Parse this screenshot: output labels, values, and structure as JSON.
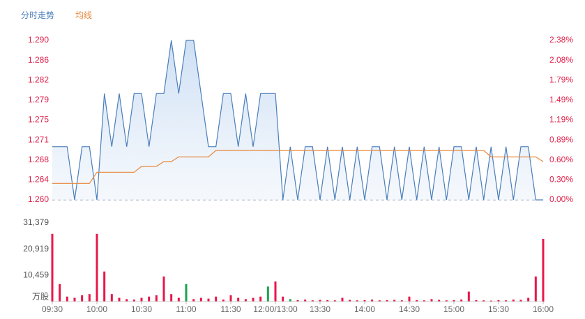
{
  "chart_data": {
    "type": "line",
    "x": [
      0,
      5,
      10,
      15,
      20,
      25,
      30,
      35,
      40,
      45,
      50,
      55,
      60,
      65,
      70,
      75,
      80,
      85,
      90,
      95,
      100,
      105,
      110,
      115,
      120,
      125,
      130,
      135,
      140,
      145,
      150,
      155,
      160,
      165,
      170,
      175,
      180,
      185,
      190,
      195,
      200,
      205,
      210,
      215,
      220,
      225,
      230,
      235,
      240,
      245,
      250,
      255,
      260,
      265,
      270,
      275,
      280,
      285,
      290,
      295,
      300,
      305,
      310,
      315,
      320,
      325,
      330
    ],
    "xlim": [
      0,
      330
    ],
    "xticks": [
      {
        "value": 0,
        "label": "09:30"
      },
      {
        "value": 30,
        "label": "10:00"
      },
      {
        "value": 60,
        "label": "10:30"
      },
      {
        "value": 90,
        "label": "11:00"
      },
      {
        "value": 120,
        "label": "11:30"
      },
      {
        "value": 150,
        "label": "12:00/13:00"
      },
      {
        "value": 180,
        "label": "13:30"
      },
      {
        "value": 210,
        "label": "14:00"
      },
      {
        "value": 240,
        "label": "14:30"
      },
      {
        "value": 270,
        "label": "15:00"
      },
      {
        "value": 300,
        "label": "15:30"
      },
      {
        "value": 330,
        "label": "16:00"
      }
    ],
    "ylim": [
      1.26,
      1.29
    ],
    "yticks": [
      {
        "value": 1.26,
        "label": "1.260"
      },
      {
        "value": 1.26375,
        "label": "1.264"
      },
      {
        "value": 1.2675,
        "label": "1.268"
      },
      {
        "value": 1.27125,
        "label": "1.271"
      },
      {
        "value": 1.275,
        "label": "1.275"
      },
      {
        "value": 1.27875,
        "label": "1.279"
      },
      {
        "value": 1.2825,
        "label": "1.282"
      },
      {
        "value": 1.28625,
        "label": "1.286"
      },
      {
        "value": 1.29,
        "label": "1.290"
      }
    ],
    "y2lim": [
      0,
      2.381
    ],
    "y2ticks": [
      {
        "value": 0,
        "label": "0.00%"
      },
      {
        "value": 0.2976,
        "label": "0.30%"
      },
      {
        "value": 0.5952,
        "label": "0.60%"
      },
      {
        "value": 0.8929,
        "label": "0.89%"
      },
      {
        "value": 1.1905,
        "label": "1.19%"
      },
      {
        "value": 1.4881,
        "label": "1.49%"
      },
      {
        "value": 1.7857,
        "label": "1.79%"
      },
      {
        "value": 2.0833,
        "label": "2.08%"
      },
      {
        "value": 2.381,
        "label": "2.38%"
      }
    ],
    "area": true,
    "series": [
      {
        "name": "分时走势",
        "color": "#4a7ebb",
        "values": [
          1.27,
          1.27,
          1.27,
          1.26,
          1.27,
          1.27,
          1.26,
          1.28,
          1.27,
          1.28,
          1.27,
          1.28,
          1.28,
          1.27,
          1.28,
          1.28,
          1.29,
          1.28,
          1.29,
          1.29,
          1.28,
          1.27,
          1.27,
          1.28,
          1.28,
          1.27,
          1.28,
          1.27,
          1.28,
          1.28,
          1.28,
          1.26,
          1.27,
          1.26,
          1.27,
          1.27,
          1.26,
          1.27,
          1.26,
          1.27,
          1.26,
          1.27,
          1.26,
          1.27,
          1.27,
          1.26,
          1.27,
          1.26,
          1.27,
          1.26,
          1.27,
          1.26,
          1.27,
          1.26,
          1.27,
          1.27,
          1.26,
          1.27,
          1.26,
          1.27,
          1.26,
          1.27,
          1.26,
          1.27,
          1.27,
          1.26,
          1.26
        ]
      },
      {
        "name": "均线",
        "color": "#e8873a",
        "values": [
          1.2631,
          1.2631,
          1.2631,
          1.2631,
          1.2631,
          1.2631,
          1.2652,
          1.2652,
          1.2652,
          1.2652,
          1.2652,
          1.2652,
          1.2663,
          1.2663,
          1.2663,
          1.2672,
          1.2672,
          1.2681,
          1.2681,
          1.2681,
          1.2681,
          1.2681,
          1.2693,
          1.2693,
          1.2693,
          1.2693,
          1.2693,
          1.2693,
          1.2693,
          1.2693,
          1.2693,
          1.2693,
          1.2693,
          1.2693,
          1.2693,
          1.2693,
          1.2693,
          1.2693,
          1.2693,
          1.2693,
          1.2693,
          1.2693,
          1.2693,
          1.2693,
          1.2693,
          1.2693,
          1.2693,
          1.2693,
          1.2693,
          1.2693,
          1.2693,
          1.2693,
          1.2693,
          1.2693,
          1.2693,
          1.2693,
          1.2693,
          1.2693,
          1.2693,
          1.2681,
          1.2681,
          1.2681,
          1.2681,
          1.2681,
          1.2681,
          1.2681,
          1.2672
        ]
      }
    ],
    "volume": {
      "values": [
        27000,
        7000,
        2000,
        1500,
        2500,
        3000,
        27000,
        12000,
        3000,
        1500,
        1000,
        800,
        1500,
        2000,
        2500,
        10000,
        3000,
        1500,
        7000,
        1000,
        1500,
        1200,
        2000,
        800,
        2500,
        1500,
        1000,
        1500,
        2000,
        6000,
        8000,
        2000,
        1000,
        600,
        800,
        500,
        700,
        600,
        500,
        1500,
        700,
        500,
        600,
        800,
        500,
        600,
        700,
        500,
        2000,
        600,
        500,
        1000,
        700,
        500,
        600,
        800,
        4000,
        600,
        500,
        400,
        600,
        500,
        800,
        700,
        1500,
        10000,
        25000
      ],
      "colors": [
        "#e8174a",
        "#e8174a",
        "#e8174a",
        "#e8174a",
        "#e8174a",
        "#e8174a",
        "#e8174a",
        "#e8174a",
        "#e8174a",
        "#e8174a",
        "#e8174a",
        "#e8174a",
        "#e8174a",
        "#e8174a",
        "#e8174a",
        "#e8174a",
        "#e8174a",
        "#e8174a",
        "#1aa34a",
        "#e8174a",
        "#e8174a",
        "#e8174a",
        "#e8174a",
        "#e8174a",
        "#e8174a",
        "#e8174a",
        "#e8174a",
        "#e8174a",
        "#e8174a",
        "#1aa34a",
        "#e8174a",
        "#e8174a",
        "#1aa34a",
        "#e8174a",
        "#e8174a",
        "#e8174a",
        "#e8174a",
        "#e8174a",
        "#e8174a",
        "#e8174a",
        "#e8174a",
        "#e8174a",
        "#e8174a",
        "#e8174a",
        "#e8174a",
        "#e8174a",
        "#e8174a",
        "#e8174a",
        "#e8174a",
        "#e8174a",
        "#e8174a",
        "#e8174a",
        "#e8174a",
        "#e8174a",
        "#e8174a",
        "#e8174a",
        "#e8174a",
        "#e8174a",
        "#e8174a",
        "#e8174a",
        "#e8174a",
        "#e8174a",
        "#e8174a",
        "#e8174a",
        "#e8174a",
        "#e8174a",
        "#e8174a"
      ],
      "ylim": [
        0,
        31379
      ],
      "yticks": [
        {
          "value": 0,
          "label": "万股"
        },
        {
          "value": 10459,
          "label": "10,459"
        },
        {
          "value": 20919,
          "label": "20,919"
        },
        {
          "value": 31379,
          "label": "31,379"
        }
      ]
    }
  }
}
